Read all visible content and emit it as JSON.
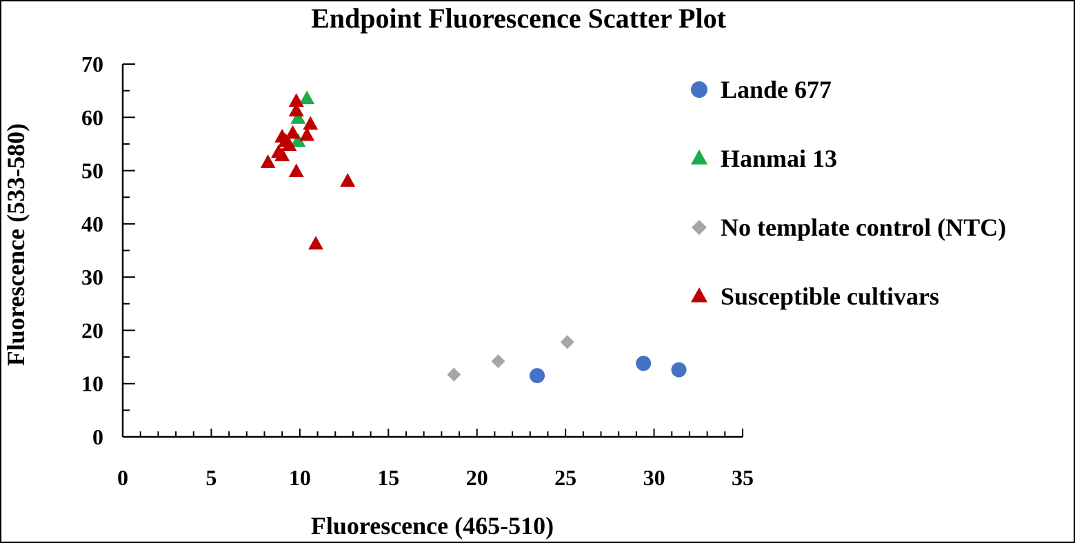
{
  "chart_data": {
    "type": "scatter",
    "title": "Endpoint Fluorescence Scatter Plot",
    "xlabel": "Fluorescence (465-510)",
    "ylabel": "Fluorescence (533-580)",
    "xlim": [
      0,
      35
    ],
    "ylim": [
      0,
      70
    ],
    "xticks": [
      0,
      5,
      10,
      15,
      20,
      25,
      30,
      35
    ],
    "yticks": [
      0,
      10,
      20,
      30,
      40,
      50,
      60,
      70
    ],
    "grid": false,
    "legend_position": "right",
    "series": [
      {
        "name": "Lande 677",
        "marker": "circle",
        "color": "#4472c4",
        "points": [
          [
            23.4,
            11.5
          ],
          [
            29.4,
            13.8
          ],
          [
            31.4,
            12.6
          ]
        ]
      },
      {
        "name": "Hanmai 13",
        "marker": "triangle",
        "color": "#1aad4b",
        "points": [
          [
            10.4,
            63.5
          ],
          [
            9.9,
            59.8
          ],
          [
            9.9,
            55.5
          ]
        ]
      },
      {
        "name": "No template control (NTC)",
        "marker": "diamond",
        "color": "#a6a6a6",
        "points": [
          [
            18.7,
            11.7
          ],
          [
            21.2,
            14.2
          ],
          [
            25.1,
            17.8
          ]
        ]
      },
      {
        "name": "Susceptible cultivars",
        "marker": "triangle",
        "color": "#c00000",
        "points": [
          [
            9.8,
            63.0
          ],
          [
            9.8,
            61.2
          ],
          [
            10.6,
            58.7
          ],
          [
            9.6,
            57.0
          ],
          [
            9.0,
            56.3
          ],
          [
            10.4,
            56.6
          ],
          [
            9.4,
            54.7
          ],
          [
            9.2,
            55.5
          ],
          [
            8.8,
            53.4
          ],
          [
            9.0,
            52.8
          ],
          [
            8.2,
            51.5
          ],
          [
            9.8,
            49.8
          ],
          [
            12.7,
            48.0
          ],
          [
            10.9,
            36.2
          ]
        ]
      }
    ]
  }
}
